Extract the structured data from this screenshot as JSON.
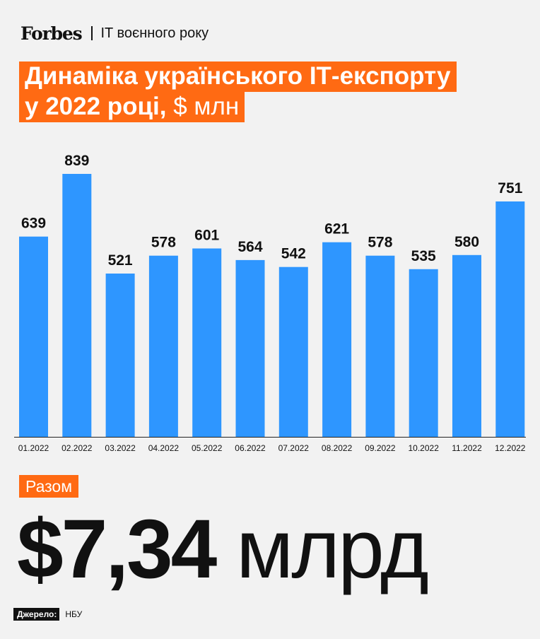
{
  "header": {
    "logo": "Forbes",
    "section": "IT воєнного року"
  },
  "title": {
    "line1": "Динаміка українського ІТ-експорту",
    "line2": "у 2022 році,",
    "unit": "$ млн"
  },
  "colors": {
    "accent": "#ff6a13",
    "bar": "#2e96ff",
    "background": "#f2f2f2"
  },
  "chart_data": {
    "type": "bar",
    "categories": [
      "01.2022",
      "02.2022",
      "03.2022",
      "04.2022",
      "05.2022",
      "06.2022",
      "07.2022",
      "08.2022",
      "09.2022",
      "10.2022",
      "11.2022",
      "12.2022"
    ],
    "values": [
      639,
      839,
      521,
      578,
      601,
      564,
      542,
      621,
      578,
      535,
      580,
      751
    ],
    "ylim": [
      0,
      839
    ],
    "grid": false,
    "legend": "none"
  },
  "total": {
    "label": "Разом",
    "number": "$7,34",
    "unit": "млрд"
  },
  "source": {
    "label": "Джерело:",
    "value": "НБУ"
  }
}
